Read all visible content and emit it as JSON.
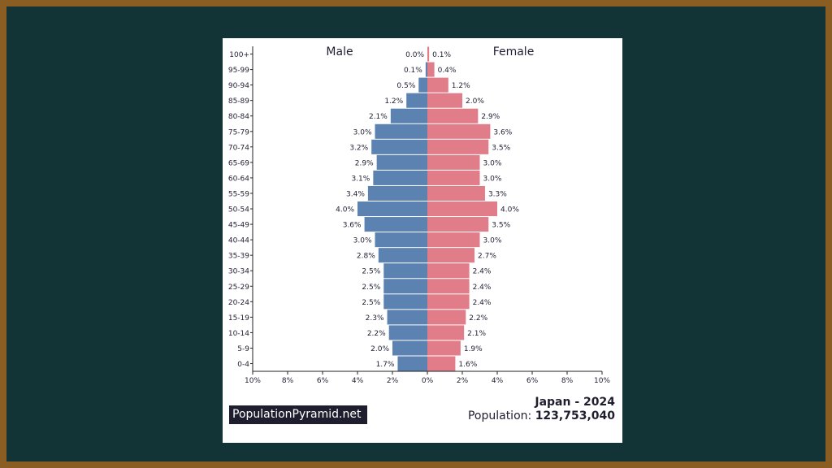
{
  "colors": {
    "male": "#5b82b0",
    "female": "#e07d89",
    "background": "#133436",
    "border": "#8a5e22"
  },
  "chart_data": {
    "type": "bar",
    "orientation": "horizontal-population-pyramid",
    "xlim": [
      -10,
      10
    ],
    "x_ticks": [
      "10%",
      "8%",
      "6%",
      "4%",
      "2%",
      "0%",
      "2%",
      "4%",
      "6%",
      "8%",
      "10%"
    ],
    "categories": [
      "0-4",
      "5-9",
      "10-14",
      "15-19",
      "20-24",
      "25-29",
      "30-34",
      "35-39",
      "40-44",
      "45-49",
      "50-54",
      "55-59",
      "60-64",
      "65-69",
      "70-74",
      "75-79",
      "80-84",
      "85-89",
      "90-94",
      "95-99",
      "100+"
    ],
    "series": [
      {
        "name": "Male",
        "values": [
          1.7,
          2.0,
          2.2,
          2.3,
          2.5,
          2.5,
          2.5,
          2.8,
          3.0,
          3.6,
          4.0,
          3.4,
          3.1,
          2.9,
          3.2,
          3.0,
          2.1,
          1.2,
          0.5,
          0.1,
          0.0
        ]
      },
      {
        "name": "Female",
        "values": [
          1.6,
          1.9,
          2.1,
          2.2,
          2.4,
          2.4,
          2.4,
          2.7,
          3.0,
          3.5,
          4.0,
          3.3,
          3.0,
          3.0,
          3.5,
          3.6,
          2.9,
          2.0,
          1.2,
          0.4,
          0.1
        ]
      }
    ],
    "grid": false
  },
  "footer": {
    "brand": "PopulationPyramid.net",
    "country_year": "Japan - 2024",
    "population_label": "Population:",
    "population_value": "123,753,040"
  }
}
